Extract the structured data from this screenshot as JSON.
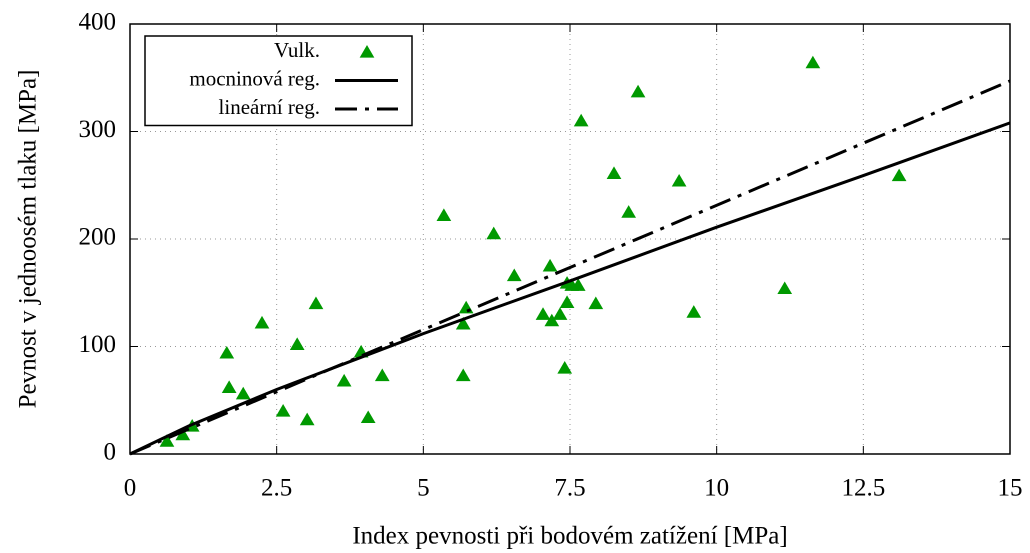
{
  "chart_data": {
    "type": "scatter",
    "xlabel": "Index pevnosti při bodovém zatížení [MPa]",
    "ylabel": "Pevnost v jednoosém tlaku [MPa]",
    "xlim": [
      0,
      15
    ],
    "ylim": [
      0,
      400
    ],
    "xticks": [
      0,
      2.5,
      5,
      7.5,
      10,
      12.5,
      15
    ],
    "yticks": [
      0,
      100,
      200,
      300,
      400
    ],
    "grid": true,
    "legend": "upper left",
    "series": [
      {
        "name": "Vulk.",
        "type": "scatter",
        "marker": "triangle",
        "color": "#009900",
        "x": [
          0.63,
          0.9,
          1.06,
          1.65,
          1.69,
          1.93,
          2.25,
          2.61,
          2.85,
          3.02,
          3.17,
          3.65,
          3.94,
          4.06,
          4.3,
          5.35,
          5.68,
          5.68,
          5.73,
          6.2,
          6.55,
          7.04,
          7.16,
          7.19,
          7.33,
          7.41,
          7.45,
          7.45,
          7.53,
          7.64,
          7.69,
          7.94,
          8.25,
          8.5,
          8.66,
          9.36,
          9.61,
          11.16,
          11.64,
          13.11
        ],
        "values": [
          12,
          18,
          26,
          94,
          62,
          56,
          122,
          40,
          102,
          32,
          140,
          68,
          95,
          34,
          73,
          222,
          73,
          121,
          136,
          205,
          166,
          130,
          175,
          124,
          130,
          80,
          141,
          159,
          157,
          157,
          310,
          140,
          261,
          225,
          337,
          254,
          132,
          154,
          364,
          259
        ]
      },
      {
        "name": "mocninová reg.",
        "type": "line",
        "dash": "solid",
        "color": "#000000",
        "x": [
          0,
          1,
          2.5,
          5,
          7.5,
          10,
          12.5,
          15
        ],
        "values": [
          0,
          26,
          60,
          112,
          161,
          211,
          259,
          308
        ]
      },
      {
        "name": "lineární reg.",
        "type": "line",
        "dash": "dashdot",
        "color": "#000000",
        "x": [
          0,
          15
        ],
        "values": [
          0,
          347
        ]
      }
    ]
  }
}
